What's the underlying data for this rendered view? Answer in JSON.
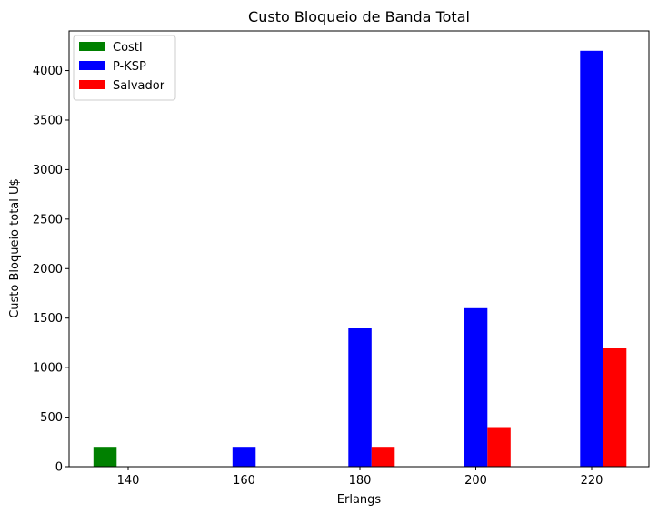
{
  "chart_data": {
    "type": "bar",
    "title": "Custo Bloqueio de Banda Total",
    "xlabel": "Erlangs",
    "ylabel": "Custo Bloqueio total U$",
    "categories": [
      "140",
      "160",
      "180",
      "200",
      "220"
    ],
    "series": [
      {
        "name": "CostI",
        "color": "#008000",
        "values": [
          200,
          0,
          0,
          0,
          0
        ]
      },
      {
        "name": "P-KSP",
        "color": "#0000ff",
        "values": [
          0,
          200,
          1400,
          1600,
          4200
        ]
      },
      {
        "name": "Salvador",
        "color": "#ff0000",
        "values": [
          0,
          0,
          200,
          400,
          1200
        ]
      }
    ],
    "yticks": [
      0,
      500,
      1000,
      1500,
      2000,
      2500,
      3000,
      3500,
      4000
    ],
    "ylim": [
      0,
      4400
    ],
    "grid": false,
    "legend_position": "upper-left"
  }
}
